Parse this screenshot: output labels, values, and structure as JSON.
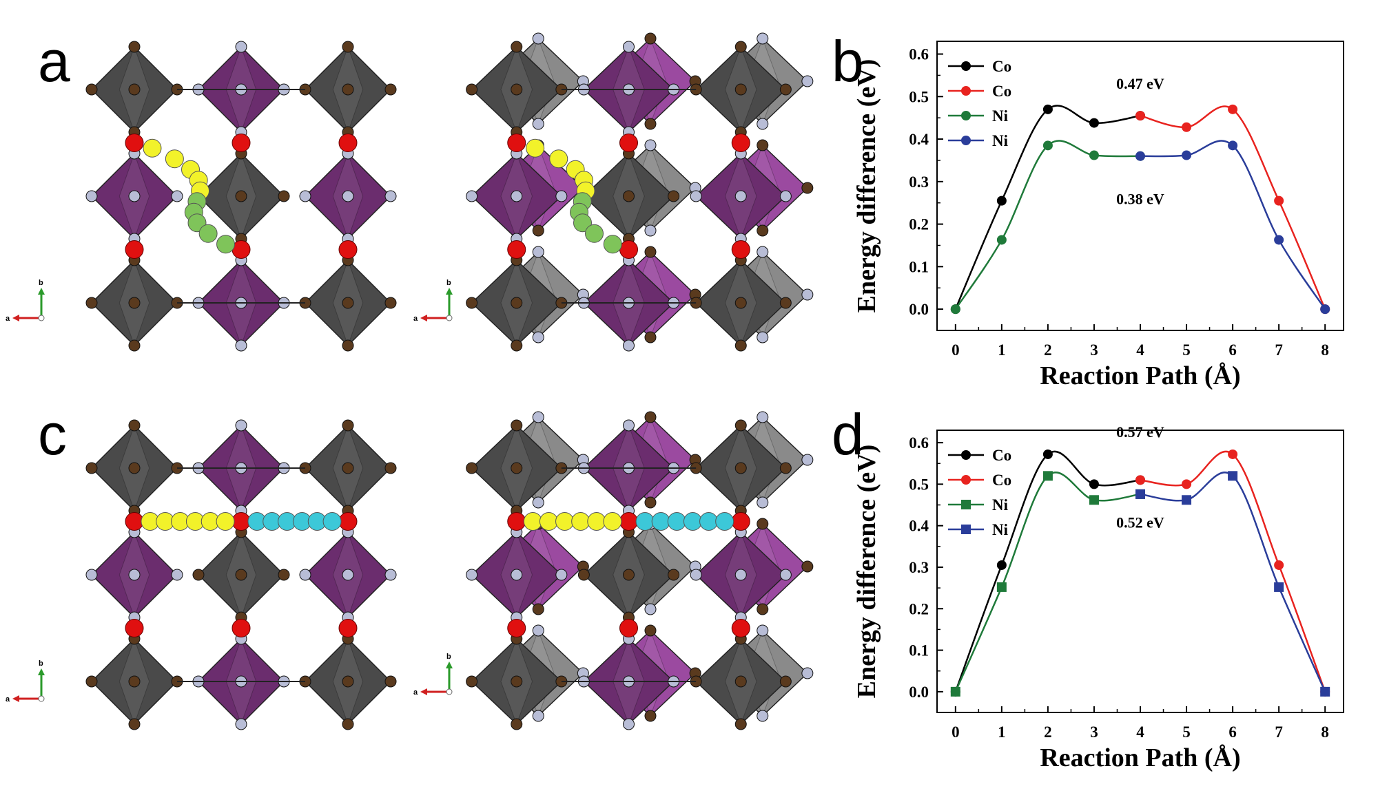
{
  "panel_labels": {
    "a": "a",
    "b": "b",
    "c": "c",
    "d": "d"
  },
  "colors": {
    "gray_octahedron": "#4a4a4a",
    "purple_octahedron": "#6b2d6e",
    "brown_atom": "#5a3a1e",
    "silver_atom": "#b8bdd6",
    "red_atom": "#e01010",
    "yellow_path": "#f2f22a",
    "green_path": "#7fc45a",
    "cyan_path": "#3cc8d8",
    "black_series": "#000000",
    "red_series": "#e8231f",
    "green_series": "#1f7a3a",
    "blue_series": "#2a3d9a"
  },
  "axes_triad": {
    "a": "a",
    "b": "b"
  },
  "chart_data": [
    {
      "panel": "b",
      "type": "line",
      "xlabel": "Reaction Path (Å)",
      "ylabel": "Energy difference (eV)",
      "xlim": [
        -0.4,
        8.4
      ],
      "ylim": [
        -0.05,
        0.63
      ],
      "xticks": [
        "0",
        "1",
        "2",
        "3",
        "4",
        "5",
        "6",
        "7",
        "8"
      ],
      "yticks": [
        "0.0",
        "0.1",
        "0.2",
        "0.3",
        "0.4",
        "0.5",
        "0.6"
      ],
      "marker": "circle",
      "series": [
        {
          "name": "Co",
          "color": "#000000",
          "x": [
            0,
            1,
            2,
            3,
            4
          ],
          "y": [
            0.0,
            0.255,
            0.47,
            0.438,
            0.455
          ]
        },
        {
          "name": "Co",
          "color": "#e8231f",
          "x": [
            4,
            5,
            6,
            7,
            8
          ],
          "y": [
            0.455,
            0.428,
            0.47,
            0.255,
            0.0
          ]
        },
        {
          "name": "Ni",
          "color": "#1f7a3a",
          "x": [
            0,
            1,
            2,
            3,
            4
          ],
          "y": [
            0.0,
            0.163,
            0.385,
            0.362,
            0.36
          ]
        },
        {
          "name": "Ni",
          "color": "#2a3d9a",
          "x": [
            4,
            5,
            6,
            7,
            8
          ],
          "y": [
            0.36,
            0.362,
            0.385,
            0.163,
            0.0
          ]
        }
      ],
      "annotations": [
        "0.47 eV",
        "0.38 eV"
      ]
    },
    {
      "panel": "d",
      "type": "line",
      "xlabel": "Reaction Path (Å)",
      "ylabel": "Energy difference (eV)",
      "xlim": [
        -0.4,
        8.4
      ],
      "ylim": [
        -0.05,
        0.63
      ],
      "xticks": [
        "0",
        "1",
        "2",
        "3",
        "4",
        "5",
        "6",
        "7",
        "8"
      ],
      "yticks": [
        "0.0",
        "0.1",
        "0.2",
        "0.3",
        "0.4",
        "0.5",
        "0.6"
      ],
      "series": [
        {
          "name": "Co",
          "color": "#000000",
          "marker": "circle",
          "x": [
            0,
            1,
            2,
            3,
            4
          ],
          "y": [
            0.0,
            0.305,
            0.572,
            0.5,
            0.51
          ]
        },
        {
          "name": "Co",
          "color": "#e8231f",
          "marker": "circle",
          "x": [
            4,
            5,
            6,
            7,
            8
          ],
          "y": [
            0.51,
            0.5,
            0.572,
            0.305,
            0.0
          ]
        },
        {
          "name": "Ni",
          "color": "#1f7a3a",
          "marker": "square",
          "x": [
            0,
            1,
            2,
            3,
            4
          ],
          "y": [
            0.0,
            0.252,
            0.52,
            0.462,
            0.476
          ]
        },
        {
          "name": "Ni",
          "color": "#2a3d9a",
          "marker": "square",
          "x": [
            4,
            5,
            6,
            7,
            8
          ],
          "y": [
            0.476,
            0.462,
            0.52,
            0.252,
            0.0
          ]
        }
      ],
      "annotations": [
        "0.57 eV",
        "0.52 eV"
      ]
    }
  ]
}
